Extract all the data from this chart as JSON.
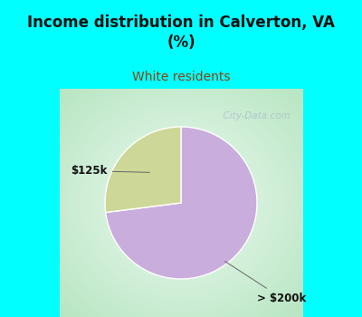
{
  "title": "Income distribution in Calverton, VA\n(%)",
  "subtitle": "White residents",
  "title_color": "#111111",
  "subtitle_color": "#8B4513",
  "title_bg_color": "#00FFFF",
  "chart_bg_color": "#e8f5ee",
  "slices": [
    0.73,
    0.27
  ],
  "slice_colors": [
    "#c9aedd",
    "#cdd898"
  ],
  "labels": [
    "> $200k",
    "$125k"
  ],
  "watermark": "  City-Data.com",
  "watermark_color": "#aabbcc"
}
